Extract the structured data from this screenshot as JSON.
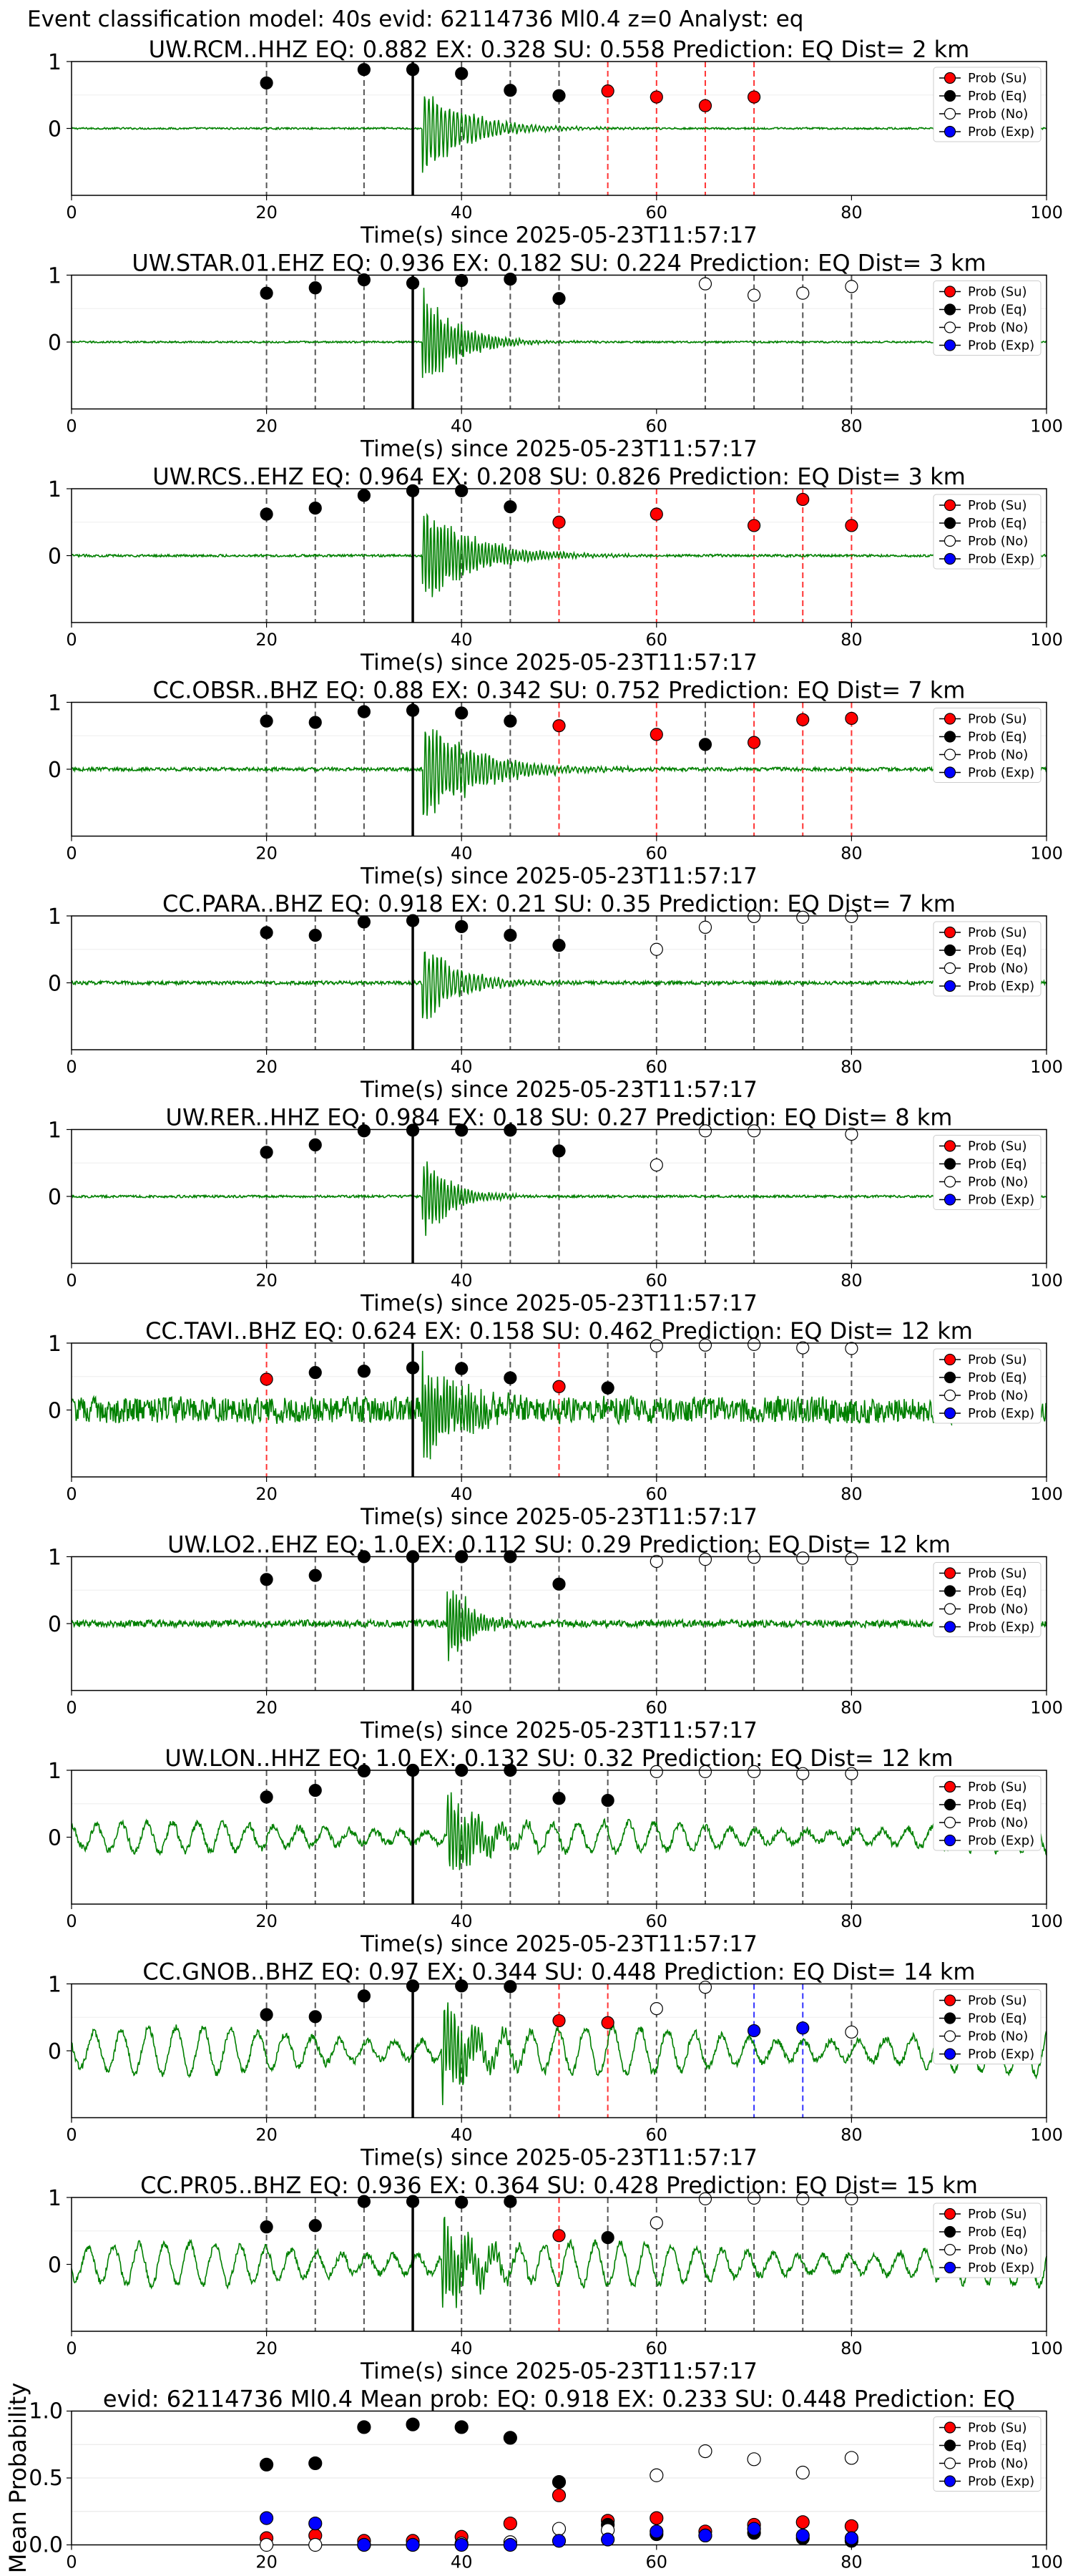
{
  "suptitle": "Event classification model: 40s evid: 62114736 Ml0.4 z=0 Analyst: eq",
  "legend_labels": [
    "Prob (Su)",
    "Prob (Eq)",
    "Prob (No)",
    "Prob (Exp)"
  ],
  "xlabel": "Time(s) since 2025-05-23T11:57:17",
  "colors": {
    "su": "#ff0000",
    "eq": "#000000",
    "no": "#ffffff",
    "exp": "#0000ff",
    "trace": "#008000",
    "vline_eq": "#555555",
    "vline_su": "#ff3333",
    "vline_exp": "#3333ff"
  },
  "chart_data": [
    {
      "type": "line",
      "title": "UW.RCM..HHZ   EQ: 0.882  EX: 0.328  SU: 0.558   Prediction: EQ    Dist= 2 km",
      "xlim": [
        0,
        100
      ],
      "ylim": [
        -1,
        1
      ],
      "xticks": [
        0,
        20,
        40,
        60,
        80,
        100
      ],
      "yticks": [
        "1",
        "0"
      ],
      "pick_time": 35,
      "trace": {
        "noise": 0.015,
        "onset": 36,
        "peak": 0.85,
        "decay": 4.5,
        "period": 1.2
      },
      "points": [
        {
          "t": 20,
          "cls": "eq",
          "p": 0.68
        },
        {
          "t": 30,
          "cls": "eq",
          "p": 0.88
        },
        {
          "t": 35,
          "cls": "eq",
          "p": 0.88
        },
        {
          "t": 40,
          "cls": "eq",
          "p": 0.82
        },
        {
          "t": 45,
          "cls": "eq",
          "p": 0.57
        },
        {
          "t": 50,
          "cls": "eq",
          "p": 0.49
        },
        {
          "t": 55,
          "cls": "su",
          "p": 0.56
        },
        {
          "t": 60,
          "cls": "su",
          "p": 0.47
        },
        {
          "t": 65,
          "cls": "su",
          "p": 0.34
        },
        {
          "t": 70,
          "cls": "su",
          "p": 0.47
        }
      ]
    },
    {
      "type": "line",
      "title": "UW.STAR.01.EHZ   EQ: 0.936  EX: 0.182  SU: 0.224   Prediction: EQ    Dist= 3 km",
      "xlim": [
        0,
        100
      ],
      "ylim": [
        -1,
        1
      ],
      "xticks": [
        0,
        20,
        40,
        60,
        80,
        100
      ],
      "yticks": [
        "1",
        "0"
      ],
      "pick_time": 35,
      "trace": {
        "noise": 0.015,
        "onset": 36,
        "peak": 1.0,
        "decay": 3.5,
        "period": 1.0
      },
      "points": [
        {
          "t": 20,
          "cls": "eq",
          "p": 0.73
        },
        {
          "t": 25,
          "cls": "eq",
          "p": 0.81
        },
        {
          "t": 30,
          "cls": "eq",
          "p": 0.93
        },
        {
          "t": 35,
          "cls": "eq",
          "p": 0.88
        },
        {
          "t": 40,
          "cls": "eq",
          "p": 0.92
        },
        {
          "t": 45,
          "cls": "eq",
          "p": 0.94
        },
        {
          "t": 50,
          "cls": "eq",
          "p": 0.65
        },
        {
          "t": 65,
          "cls": "no",
          "p": 0.87
        },
        {
          "t": 70,
          "cls": "no",
          "p": 0.7
        },
        {
          "t": 75,
          "cls": "no",
          "p": 0.73
        },
        {
          "t": 80,
          "cls": "no",
          "p": 0.83
        }
      ]
    },
    {
      "type": "line",
      "title": "UW.RCS..EHZ   EQ: 0.964  EX: 0.208  SU: 0.826   Prediction: EQ    Dist= 3 km",
      "xlim": [
        0,
        100
      ],
      "ylim": [
        -1,
        1
      ],
      "xticks": [
        0,
        20,
        40,
        60,
        80,
        100
      ],
      "yticks": [
        "1",
        "0"
      ],
      "pick_time": 35,
      "trace": {
        "noise": 0.02,
        "onset": 36,
        "peak": 1.0,
        "decay": 5.0,
        "period": 1.0
      },
      "points": [
        {
          "t": 20,
          "cls": "eq",
          "p": 0.62
        },
        {
          "t": 25,
          "cls": "eq",
          "p": 0.71
        },
        {
          "t": 30,
          "cls": "eq",
          "p": 0.9
        },
        {
          "t": 35,
          "cls": "eq",
          "p": 0.97
        },
        {
          "t": 40,
          "cls": "eq",
          "p": 0.97
        },
        {
          "t": 45,
          "cls": "eq",
          "p": 0.73
        },
        {
          "t": 50,
          "cls": "su",
          "p": 0.5
        },
        {
          "t": 60,
          "cls": "su",
          "p": 0.62
        },
        {
          "t": 70,
          "cls": "su",
          "p": 0.45
        },
        {
          "t": 75,
          "cls": "su",
          "p": 0.84
        },
        {
          "t": 80,
          "cls": "su",
          "p": 0.45
        }
      ]
    },
    {
      "type": "line",
      "title": "CC.OBSR..BHZ   EQ: 0.88  EX: 0.342  SU: 0.752   Prediction: EQ    Dist= 7 km",
      "xlim": [
        0,
        100
      ],
      "ylim": [
        -1,
        1
      ],
      "xticks": [
        0,
        20,
        40,
        60,
        80,
        100
      ],
      "yticks": [
        "1",
        "0"
      ],
      "pick_time": 35,
      "trace": {
        "noise": 0.03,
        "onset": 36,
        "peak": 1.0,
        "decay": 5.5,
        "period": 1.1
      },
      "points": [
        {
          "t": 20,
          "cls": "eq",
          "p": 0.72
        },
        {
          "t": 25,
          "cls": "eq",
          "p": 0.7
        },
        {
          "t": 30,
          "cls": "eq",
          "p": 0.86
        },
        {
          "t": 35,
          "cls": "eq",
          "p": 0.88
        },
        {
          "t": 40,
          "cls": "eq",
          "p": 0.84
        },
        {
          "t": 45,
          "cls": "eq",
          "p": 0.72
        },
        {
          "t": 50,
          "cls": "su",
          "p": 0.65
        },
        {
          "t": 60,
          "cls": "su",
          "p": 0.52
        },
        {
          "t": 65,
          "cls": "eq",
          "p": 0.37
        },
        {
          "t": 70,
          "cls": "su",
          "p": 0.4
        },
        {
          "t": 75,
          "cls": "su",
          "p": 0.74
        },
        {
          "t": 80,
          "cls": "su",
          "p": 0.76
        }
      ]
    },
    {
      "type": "line",
      "title": "CC.PARA..BHZ   EQ: 0.918  EX: 0.21  SU: 0.35   Prediction: EQ    Dist= 7 km",
      "xlim": [
        0,
        100
      ],
      "ylim": [
        -1,
        1
      ],
      "xticks": [
        0,
        20,
        40,
        60,
        80,
        100
      ],
      "yticks": [
        "1",
        "0"
      ],
      "pick_time": 35,
      "trace": {
        "noise": 0.03,
        "onset": 36,
        "peak": 0.8,
        "decay": 3.5,
        "period": 1.2
      },
      "points": [
        {
          "t": 20,
          "cls": "eq",
          "p": 0.75
        },
        {
          "t": 25,
          "cls": "eq",
          "p": 0.71
        },
        {
          "t": 30,
          "cls": "eq",
          "p": 0.91
        },
        {
          "t": 35,
          "cls": "eq",
          "p": 0.93
        },
        {
          "t": 40,
          "cls": "eq",
          "p": 0.84
        },
        {
          "t": 45,
          "cls": "eq",
          "p": 0.71
        },
        {
          "t": 50,
          "cls": "eq",
          "p": 0.56
        },
        {
          "t": 60,
          "cls": "no",
          "p": 0.5
        },
        {
          "t": 65,
          "cls": "no",
          "p": 0.83
        },
        {
          "t": 70,
          "cls": "no",
          "p": 0.99
        },
        {
          "t": 75,
          "cls": "no",
          "p": 0.98
        },
        {
          "t": 80,
          "cls": "no",
          "p": 0.99
        }
      ]
    },
    {
      "type": "line",
      "title": "UW.RER..HHZ   EQ: 0.984  EX: 0.18  SU: 0.27   Prediction: EQ    Dist= 8 km",
      "xlim": [
        0,
        100
      ],
      "ylim": [
        -1,
        1
      ],
      "xticks": [
        0,
        20,
        40,
        60,
        80,
        100
      ],
      "yticks": [
        "1",
        "0"
      ],
      "pick_time": 35,
      "trace": {
        "noise": 0.02,
        "onset": 36,
        "peak": 0.85,
        "decay": 2.8,
        "period": 1.0
      },
      "points": [
        {
          "t": 20,
          "cls": "eq",
          "p": 0.66
        },
        {
          "t": 25,
          "cls": "eq",
          "p": 0.77
        },
        {
          "t": 30,
          "cls": "eq",
          "p": 0.98
        },
        {
          "t": 35,
          "cls": "eq",
          "p": 0.99
        },
        {
          "t": 40,
          "cls": "eq",
          "p": 0.99
        },
        {
          "t": 45,
          "cls": "eq",
          "p": 0.99
        },
        {
          "t": 50,
          "cls": "eq",
          "p": 0.68
        },
        {
          "t": 60,
          "cls": "no",
          "p": 0.47
        },
        {
          "t": 65,
          "cls": "no",
          "p": 0.98
        },
        {
          "t": 70,
          "cls": "no",
          "p": 0.98
        },
        {
          "t": 80,
          "cls": "no",
          "p": 0.93
        }
      ]
    },
    {
      "type": "line",
      "title": "CC.TAVI..BHZ   EQ: 0.624  EX: 0.158  SU: 0.462   Prediction: EQ    Dist= 12 km",
      "xlim": [
        0,
        100
      ],
      "ylim": [
        -1,
        1
      ],
      "xticks": [
        0,
        20,
        40,
        60,
        80,
        100
      ],
      "yticks": [
        "1",
        "0"
      ],
      "pick_time": 35,
      "trace": {
        "noise": 0.22,
        "onset": 36,
        "peak": 1.0,
        "decay": 4.0,
        "period": 0.9
      },
      "points": [
        {
          "t": 20,
          "cls": "su",
          "p": 0.46
        },
        {
          "t": 25,
          "cls": "eq",
          "p": 0.56
        },
        {
          "t": 30,
          "cls": "eq",
          "p": 0.58
        },
        {
          "t": 35,
          "cls": "eq",
          "p": 0.63
        },
        {
          "t": 40,
          "cls": "eq",
          "p": 0.62
        },
        {
          "t": 45,
          "cls": "eq",
          "p": 0.48
        },
        {
          "t": 50,
          "cls": "su",
          "p": 0.35
        },
        {
          "t": 55,
          "cls": "eq",
          "p": 0.33
        },
        {
          "t": 60,
          "cls": "no",
          "p": 0.96
        },
        {
          "t": 65,
          "cls": "no",
          "p": 0.97
        },
        {
          "t": 70,
          "cls": "no",
          "p": 0.98
        },
        {
          "t": 75,
          "cls": "no",
          "p": 0.93
        },
        {
          "t": 80,
          "cls": "no",
          "p": 0.92
        }
      ]
    },
    {
      "type": "line",
      "title": "UW.LO2..EHZ   EQ: 1.0  EX: 0.112  SU: 0.29   Prediction: EQ    Dist= 12 km",
      "xlim": [
        0,
        100
      ],
      "ylim": [
        -1,
        1
      ],
      "xticks": [
        0,
        20,
        40,
        60,
        80,
        100
      ],
      "yticks": [
        "1",
        "0"
      ],
      "pick_time": 35,
      "trace": {
        "noise": 0.06,
        "onset": 38.5,
        "peak": 1.0,
        "decay": 2.2,
        "period": 0.9
      },
      "points": [
        {
          "t": 20,
          "cls": "eq",
          "p": 0.66
        },
        {
          "t": 25,
          "cls": "eq",
          "p": 0.72
        },
        {
          "t": 30,
          "cls": "eq",
          "p": 1.0
        },
        {
          "t": 35,
          "cls": "eq",
          "p": 1.0
        },
        {
          "t": 40,
          "cls": "eq",
          "p": 1.0
        },
        {
          "t": 45,
          "cls": "eq",
          "p": 1.0
        },
        {
          "t": 50,
          "cls": "eq",
          "p": 0.59
        },
        {
          "t": 60,
          "cls": "no",
          "p": 0.93
        },
        {
          "t": 65,
          "cls": "no",
          "p": 0.96
        },
        {
          "t": 70,
          "cls": "no",
          "p": 0.99
        },
        {
          "t": 75,
          "cls": "no",
          "p": 0.98
        },
        {
          "t": 80,
          "cls": "no",
          "p": 0.97
        }
      ]
    },
    {
      "type": "line",
      "title": "UW.LON..HHZ   EQ: 1.0  EX: 0.132  SU: 0.32   Prediction: EQ    Dist= 12 km",
      "xlim": [
        0,
        100
      ],
      "ylim": [
        -1,
        1
      ],
      "xticks": [
        0,
        20,
        40,
        60,
        80,
        100
      ],
      "yticks": [
        "1",
        "0"
      ],
      "pick_time": 35,
      "trace": {
        "noise": 0.06,
        "onset": 38.5,
        "peak": 1.0,
        "decay": 3.0,
        "period": 1.0,
        "swell": 0.22,
        "swell_period": 2.6
      },
      "points": [
        {
          "t": 20,
          "cls": "eq",
          "p": 0.6
        },
        {
          "t": 25,
          "cls": "eq",
          "p": 0.7
        },
        {
          "t": 30,
          "cls": "eq",
          "p": 0.99
        },
        {
          "t": 35,
          "cls": "eq",
          "p": 1.0
        },
        {
          "t": 40,
          "cls": "eq",
          "p": 1.0
        },
        {
          "t": 45,
          "cls": "eq",
          "p": 1.0
        },
        {
          "t": 50,
          "cls": "eq",
          "p": 0.58
        },
        {
          "t": 55,
          "cls": "eq",
          "p": 0.55
        },
        {
          "t": 60,
          "cls": "no",
          "p": 0.98
        },
        {
          "t": 65,
          "cls": "no",
          "p": 0.98
        },
        {
          "t": 70,
          "cls": "no",
          "p": 0.98
        },
        {
          "t": 75,
          "cls": "no",
          "p": 0.95
        },
        {
          "t": 80,
          "cls": "no",
          "p": 0.95
        }
      ]
    },
    {
      "type": "line",
      "title": "CC.GNOB..BHZ   EQ: 0.97  EX: 0.344  SU: 0.448   Prediction: EQ    Dist= 14 km",
      "xlim": [
        0,
        100
      ],
      "ylim": [
        -1,
        1
      ],
      "xticks": [
        0,
        20,
        40,
        60,
        80,
        100
      ],
      "yticks": [
        "1",
        "0"
      ],
      "pick_time": 35,
      "trace": {
        "noise": 0.06,
        "onset": 38,
        "peak": 1.0,
        "decay": 3.0,
        "period": 1.0,
        "swell": 0.35,
        "swell_period": 2.8
      },
      "points": [
        {
          "t": 20,
          "cls": "eq",
          "p": 0.54
        },
        {
          "t": 25,
          "cls": "eq",
          "p": 0.51
        },
        {
          "t": 30,
          "cls": "eq",
          "p": 0.82
        },
        {
          "t": 35,
          "cls": "eq",
          "p": 0.97
        },
        {
          "t": 40,
          "cls": "eq",
          "p": 0.97
        },
        {
          "t": 45,
          "cls": "eq",
          "p": 0.96
        },
        {
          "t": 50,
          "cls": "su",
          "p": 0.45
        },
        {
          "t": 55,
          "cls": "su",
          "p": 0.42
        },
        {
          "t": 60,
          "cls": "no",
          "p": 0.63
        },
        {
          "t": 65,
          "cls": "no",
          "p": 0.95
        },
        {
          "t": 70,
          "cls": "exp",
          "p": 0.3
        },
        {
          "t": 75,
          "cls": "exp",
          "p": 0.34
        },
        {
          "t": 80,
          "cls": "no",
          "p": 0.28
        }
      ]
    },
    {
      "type": "line",
      "title": "CC.PR05..BHZ   EQ: 0.936  EX: 0.364  SU: 0.428   Prediction: EQ    Dist= 15 km",
      "xlim": [
        0,
        100
      ],
      "ylim": [
        -1,
        1
      ],
      "xticks": [
        0,
        20,
        40,
        60,
        80,
        100
      ],
      "yticks": [
        "1",
        "0"
      ],
      "pick_time": 35,
      "trace": {
        "noise": 0.06,
        "onset": 38,
        "peak": 1.0,
        "decay": 3.0,
        "period": 1.0,
        "swell": 0.32,
        "swell_period": 2.6
      },
      "points": [
        {
          "t": 20,
          "cls": "eq",
          "p": 0.56
        },
        {
          "t": 25,
          "cls": "eq",
          "p": 0.58
        },
        {
          "t": 30,
          "cls": "eq",
          "p": 0.94
        },
        {
          "t": 35,
          "cls": "eq",
          "p": 0.94
        },
        {
          "t": 40,
          "cls": "eq",
          "p": 0.93
        },
        {
          "t": 45,
          "cls": "eq",
          "p": 0.94
        },
        {
          "t": 50,
          "cls": "su",
          "p": 0.43
        },
        {
          "t": 55,
          "cls": "eq",
          "p": 0.4
        },
        {
          "t": 60,
          "cls": "no",
          "p": 0.62
        },
        {
          "t": 65,
          "cls": "no",
          "p": 0.98
        },
        {
          "t": 70,
          "cls": "no",
          "p": 0.99
        },
        {
          "t": 75,
          "cls": "no",
          "p": 0.98
        },
        {
          "t": 80,
          "cls": "no",
          "p": 0.98
        }
      ]
    },
    {
      "type": "scatter",
      "title": "evid: 62114736  Ml0.4   Mean prob:   EQ: 0.918  EX: 0.233  SU: 0.448   Prediction: EQ",
      "ylabel": "Mean Probability",
      "xlim": [
        0,
        100
      ],
      "ylim": [
        0,
        1
      ],
      "xticks": [
        0,
        20,
        40,
        60,
        80,
        100
      ],
      "yticks": [
        "1.0",
        "0.5",
        "0.0"
      ],
      "x": [
        20,
        25,
        30,
        35,
        40,
        45,
        50,
        55,
        60,
        65,
        70,
        75,
        80
      ],
      "series": [
        {
          "name": "Prob (Su)",
          "cls": "su",
          "values": [
            0.05,
            0.07,
            0.03,
            0.03,
            0.06,
            0.16,
            0.37,
            0.18,
            0.2,
            0.1,
            0.15,
            0.17,
            0.14
          ]
        },
        {
          "name": "Prob (Eq)",
          "cls": "eq",
          "values": [
            0.6,
            0.61,
            0.88,
            0.9,
            0.88,
            0.8,
            0.47,
            0.15,
            0.08,
            0.07,
            0.09,
            0.05,
            0.03
          ]
        },
        {
          "name": "Prob (No)",
          "cls": "no",
          "values": [
            0.0,
            0.0,
            0.0,
            0.0,
            0.01,
            0.02,
            0.12,
            0.11,
            0.52,
            0.7,
            0.64,
            0.54,
            0.65
          ]
        },
        {
          "name": "Prob (Exp)",
          "cls": "exp",
          "values": [
            0.2,
            0.16,
            0.0,
            0.0,
            0.0,
            0.0,
            0.03,
            0.04,
            0.1,
            0.07,
            0.12,
            0.07,
            0.05
          ]
        }
      ]
    }
  ]
}
